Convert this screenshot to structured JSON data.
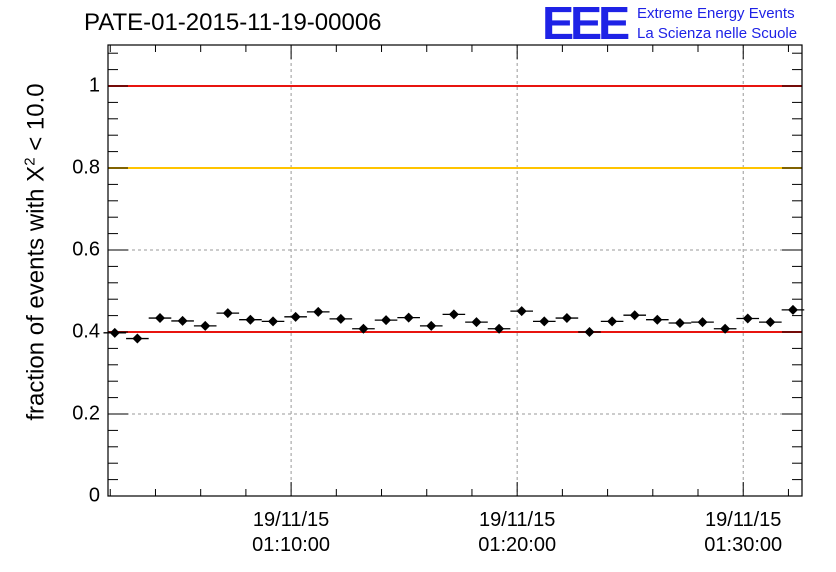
{
  "title": "PATE-01-2015-11-19-00006",
  "logo": {
    "mark": "EEE",
    "line1": "Extreme Energy Events",
    "line2": "La Scienza nelle Scuole",
    "color": "#1e22e6"
  },
  "chart_data": {
    "type": "scatter",
    "title": "PATE-01-2015-11-19-00006",
    "ylabel_prefix": "fraction of events with",
    "ylabel_symbol": "X",
    "ylabel_exp": "2",
    "ylabel_suffix": "< 10.0",
    "xlabel": "",
    "ylim": [
      0,
      1.1
    ],
    "yticks": [
      {
        "value": 0,
        "label": "0"
      },
      {
        "value": 0.2,
        "label": "0.2"
      },
      {
        "value": 0.4,
        "label": "0.4"
      },
      {
        "value": 0.6,
        "label": "0.6"
      },
      {
        "value": 0.8,
        "label": "0.8"
      },
      {
        "value": 1,
        "label": "1"
      }
    ],
    "xlim_minutes": [
      1.9,
      32.6
    ],
    "xticks": [
      {
        "minute": 10,
        "date": "19/11/15",
        "time": "01:10:00"
      },
      {
        "minute": 20,
        "date": "19/11/15",
        "time": "01:20:00"
      },
      {
        "minute": 30,
        "date": "19/11/15",
        "time": "01:30:00"
      }
    ],
    "bin_width_minutes": 1.0,
    "first_bin_minute": 2.2,
    "values": [
      0.398,
      0.384,
      0.434,
      0.427,
      0.415,
      0.446,
      0.43,
      0.426,
      0.437,
      0.449,
      0.432,
      0.408,
      0.429,
      0.435,
      0.415,
      0.443,
      0.424,
      0.408,
      0.451,
      0.426,
      0.434,
      0.4,
      0.426,
      0.441,
      0.43,
      0.422,
      0.424,
      0.408,
      0.433,
      0.424,
      0.454
    ],
    "error": 0.008,
    "reference_lines": [
      {
        "value": 1.0,
        "color": "#e8140f"
      },
      {
        "value": 0.8,
        "color": "#ffc400"
      },
      {
        "value": 0.4,
        "color": "#e8140f"
      }
    ],
    "grid": true
  }
}
